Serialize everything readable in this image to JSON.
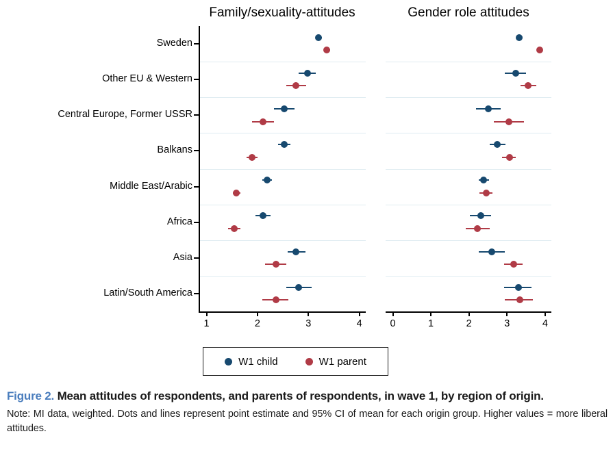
{
  "chart_data": {
    "type": "scatter",
    "subtype": "dot-plot-with-95ci",
    "categories": [
      "Sweden",
      "Other EU & Western",
      "Central Europe, Former USSR",
      "Balkans",
      "Middle East/Arabic",
      "Africa",
      "Asia",
      "Latin/South America"
    ],
    "legend_position": "bottom",
    "grid": "row-separators-only",
    "panels": [
      {
        "title": "Family/sexuality-attitudes",
        "xlim": [
          1,
          4
        ],
        "xticks": [
          1,
          2,
          3,
          4
        ],
        "series": [
          {
            "name": "W1 child",
            "color": "#17496f",
            "values": [
              {
                "v": 3.2,
                "lo": 3.14,
                "hi": 3.26
              },
              {
                "v": 2.98,
                "lo": 2.81,
                "hi": 3.15
              },
              {
                "v": 2.53,
                "lo": 2.33,
                "hi": 2.73
              },
              {
                "v": 2.52,
                "lo": 2.4,
                "hi": 2.64
              },
              {
                "v": 2.19,
                "lo": 2.1,
                "hi": 2.28
              },
              {
                "v": 2.11,
                "lo": 1.96,
                "hi": 2.26
              },
              {
                "v": 2.76,
                "lo": 2.59,
                "hi": 2.94
              },
              {
                "v": 2.81,
                "lo": 2.57,
                "hi": 3.06
              }
            ]
          },
          {
            "name": "W1 parent",
            "color": "#b03b46",
            "values": [
              {
                "v": 3.36,
                "lo": 3.3,
                "hi": 3.42
              },
              {
                "v": 2.76,
                "lo": 2.56,
                "hi": 2.96
              },
              {
                "v": 2.11,
                "lo": 1.89,
                "hi": 2.33
              },
              {
                "v": 1.89,
                "lo": 1.78,
                "hi": 2.0
              },
              {
                "v": 1.59,
                "lo": 1.52,
                "hi": 1.66
              },
              {
                "v": 1.55,
                "lo": 1.43,
                "hi": 1.67
              },
              {
                "v": 2.36,
                "lo": 2.15,
                "hi": 2.57
              },
              {
                "v": 2.36,
                "lo": 2.1,
                "hi": 2.61
              }
            ]
          }
        ]
      },
      {
        "title": "Gender role attitudes",
        "xlim": [
          0,
          4
        ],
        "xticks": [
          0,
          1,
          2,
          3,
          4
        ],
        "series": [
          {
            "name": "W1 child",
            "color": "#17496f",
            "values": [
              {
                "v": 3.32,
                "lo": 3.26,
                "hi": 3.38
              },
              {
                "v": 3.23,
                "lo": 2.94,
                "hi": 3.5
              },
              {
                "v": 2.51,
                "lo": 2.18,
                "hi": 2.83
              },
              {
                "v": 2.74,
                "lo": 2.54,
                "hi": 2.95
              },
              {
                "v": 2.39,
                "lo": 2.25,
                "hi": 2.53
              },
              {
                "v": 2.32,
                "lo": 2.02,
                "hi": 2.59
              },
              {
                "v": 2.59,
                "lo": 2.26,
                "hi": 2.94
              },
              {
                "v": 3.3,
                "lo": 2.92,
                "hi": 3.65
              }
            ]
          },
          {
            "name": "W1 parent",
            "color": "#b03b46",
            "values": [
              {
                "v": 3.85,
                "lo": 3.79,
                "hi": 3.91
              },
              {
                "v": 3.55,
                "lo": 3.35,
                "hi": 3.77
              },
              {
                "v": 3.05,
                "lo": 2.65,
                "hi": 3.45
              },
              {
                "v": 3.06,
                "lo": 2.87,
                "hi": 3.23
              },
              {
                "v": 2.45,
                "lo": 2.28,
                "hi": 2.62
              },
              {
                "v": 2.23,
                "lo": 1.92,
                "hi": 2.54
              },
              {
                "v": 3.17,
                "lo": 2.93,
                "hi": 3.41
              },
              {
                "v": 3.33,
                "lo": 2.94,
                "hi": 3.68
              }
            ]
          }
        ]
      }
    ],
    "legend": [
      {
        "label": "W1 child",
        "color": "#17496f"
      },
      {
        "label": "W1 parent",
        "color": "#b03b46"
      }
    ],
    "colors": {
      "child": "#17496f",
      "parent": "#b03b46",
      "row_separator": "#dfecf1",
      "axis": "#000000"
    }
  },
  "caption": {
    "label": "Figure 2.",
    "label_color": "#4a7dbd",
    "title": " Mean attitudes of respondents, and parents of respondents, in wave 1, by region of origin.",
    "note": "Note: MI data, weighted. Dots and lines represent point estimate and 95% CI of mean for each origin group. Higher values = more liberal attitudes."
  }
}
